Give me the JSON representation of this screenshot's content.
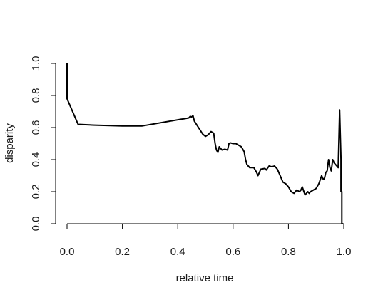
{
  "chart_data": {
    "type": "line",
    "title": "",
    "xlabel": "relative time",
    "ylabel": "disparity",
    "xlim": [
      0,
      1
    ],
    "ylim": [
      0,
      1
    ],
    "x_ticks": [
      "0.0",
      "0.2",
      "0.4",
      "0.6",
      "0.8",
      "1.0"
    ],
    "y_ticks": [
      "0.0",
      "0.2",
      "0.4",
      "0.6",
      "0.8",
      "1.0"
    ],
    "grid": false,
    "line_color": "#000000",
    "series": [
      {
        "x": [
          0.0,
          0.0,
          0.04,
          0.1,
          0.2,
          0.27,
          0.44,
          0.445,
          0.45,
          0.455,
          0.46,
          0.475,
          0.49,
          0.5,
          0.51,
          0.52,
          0.53,
          0.535,
          0.54,
          0.545,
          0.55,
          0.56,
          0.57,
          0.58,
          0.585,
          0.59,
          0.6,
          0.61,
          0.63,
          0.64,
          0.645,
          0.65,
          0.66,
          0.675,
          0.685,
          0.69,
          0.7,
          0.715,
          0.72,
          0.73,
          0.74,
          0.75,
          0.76,
          0.77,
          0.78,
          0.79,
          0.8,
          0.81,
          0.82,
          0.83,
          0.84,
          0.845,
          0.85,
          0.86,
          0.87,
          0.875,
          0.88,
          0.885,
          0.89,
          0.9,
          0.91,
          0.92,
          0.925,
          0.93,
          0.935,
          0.94,
          0.945,
          0.95,
          0.955,
          0.96,
          0.965,
          0.97,
          0.975,
          0.98,
          0.985,
          0.99,
          0.99,
          0.993,
          0.993,
          0.997,
          0.997
        ],
        "y": [
          1.0,
          0.78,
          0.62,
          0.615,
          0.61,
          0.61,
          0.66,
          0.67,
          0.665,
          0.675,
          0.64,
          0.6,
          0.56,
          0.545,
          0.555,
          0.575,
          0.565,
          0.5,
          0.46,
          0.445,
          0.48,
          0.46,
          0.465,
          0.46,
          0.5,
          0.505,
          0.5,
          0.5,
          0.48,
          0.45,
          0.4,
          0.37,
          0.35,
          0.35,
          0.32,
          0.3,
          0.34,
          0.345,
          0.335,
          0.36,
          0.355,
          0.36,
          0.34,
          0.3,
          0.26,
          0.25,
          0.23,
          0.2,
          0.19,
          0.21,
          0.2,
          0.21,
          0.23,
          0.18,
          0.2,
          0.19,
          0.2,
          0.205,
          0.21,
          0.22,
          0.25,
          0.3,
          0.28,
          0.28,
          0.32,
          0.33,
          0.4,
          0.35,
          0.33,
          0.4,
          0.38,
          0.37,
          0.36,
          0.35,
          0.71,
          0.4,
          0.2,
          0.2,
          0.0,
          0.0,
          0.0
        ]
      }
    ]
  }
}
